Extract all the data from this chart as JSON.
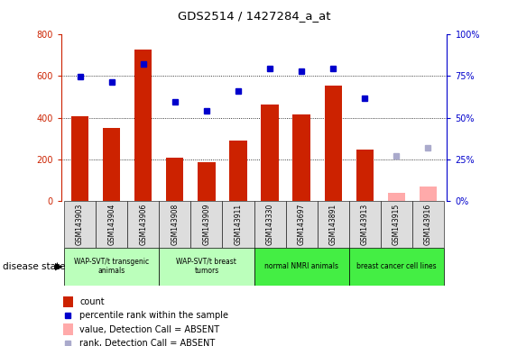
{
  "title": "GDS2514 / 1427284_a_at",
  "samples": [
    "GSM143903",
    "GSM143904",
    "GSM143906",
    "GSM143908",
    "GSM143909",
    "GSM143911",
    "GSM143330",
    "GSM143697",
    "GSM143891",
    "GSM143913",
    "GSM143915",
    "GSM143916"
  ],
  "count_values": [
    405,
    350,
    730,
    207,
    185,
    290,
    465,
    415,
    555,
    245,
    null,
    null
  ],
  "count_absent": [
    null,
    null,
    null,
    null,
    null,
    null,
    null,
    null,
    null,
    null,
    40,
    70
  ],
  "percentile_values": [
    597,
    572,
    660,
    476,
    432,
    528,
    637,
    625,
    637,
    492,
    null,
    null
  ],
  "percentile_absent": [
    null,
    null,
    null,
    null,
    null,
    null,
    null,
    null,
    null,
    null,
    215,
    253
  ],
  "groups": [
    {
      "label": "WAP-SVT/t transgenic\nanimals",
      "start": 0,
      "end": 3,
      "color": "#bbffbb"
    },
    {
      "label": "WAP-SVT/t breast\ntumors",
      "start": 3,
      "end": 6,
      "color": "#bbffbb"
    },
    {
      "label": "normal NMRI animals",
      "start": 6,
      "end": 9,
      "color": "#44ee44"
    },
    {
      "label": "breast cancer cell lines",
      "start": 9,
      "end": 12,
      "color": "#44ee44"
    }
  ],
  "bar_color_present": "#cc2200",
  "bar_color_absent": "#ffaaaa",
  "dot_color_present": "#0000cc",
  "dot_color_absent": "#aaaacc",
  "ylim_left": [
    0,
    800
  ],
  "ylim_right": [
    0,
    100
  ],
  "yticks_left": [
    0,
    200,
    400,
    600,
    800
  ],
  "yticks_right": [
    0,
    25,
    50,
    75,
    100
  ],
  "background_color": "#ffffff"
}
